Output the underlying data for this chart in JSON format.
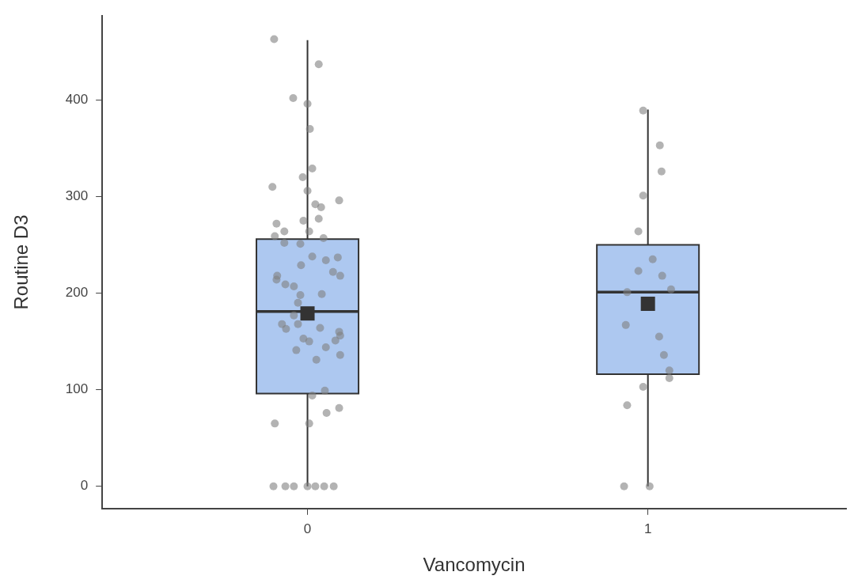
{
  "chart_data": {
    "type": "box",
    "xlabel": "Vancomycin",
    "ylabel": "Routine D3",
    "xlim": [
      -0.603,
      1.582
    ],
    "xticks": [
      0,
      1
    ],
    "ylim": [
      -23,
      487
    ],
    "yticks": [
      0,
      100,
      200,
      300,
      400
    ],
    "grid": false,
    "legend": false,
    "series": [
      {
        "color": "#adc8f0",
        "x": [
          0,
          1
        ],
        "boxes": [
          {
            "low": 0,
            "q1": 96,
            "median": 181,
            "q3": 256,
            "high": 462,
            "mean": 179
          },
          {
            "low": 0,
            "q1": 116,
            "median": 201,
            "q3": 250,
            "high": 390,
            "mean": 189
          }
        ]
      },
      {
        "type": "scatter",
        "color": "#808080",
        "marker": "circle",
        "x": [
          -0.098,
          0.033,
          -0.042,
          0,
          0.007,
          0.014,
          -0.014,
          -0.103,
          0,
          0.093,
          0.023,
          0.04,
          0.033,
          -0.012,
          -0.091,
          -0.068,
          0.005,
          -0.096,
          0.047,
          -0.068,
          -0.021,
          0.014,
          0.054,
          0.089,
          -0.019,
          0.075,
          0.096,
          -0.089,
          -0.091,
          -0.065,
          -0.04,
          -0.021,
          0.042,
          -0.028,
          -0.04,
          -0.075,
          -0.063,
          -0.028,
          0.037,
          0.093,
          0.096,
          0.082,
          -0.012,
          0.005,
          -0.033,
          0.054,
          0.096,
          0.026,
          0.051,
          0.014,
          0.093,
          0.056,
          -0.096,
          0.005,
          -0.1,
          -0.065,
          -0.04,
          0,
          0.023,
          0.049,
          0.077,
          0.986,
          1.035,
          1.04,
          0.986,
          0.972,
          1.014,
          0.972,
          1.042,
          1.068,
          0.939,
          0.935,
          1.033,
          1.047,
          1.063,
          1.063,
          0.986,
          0.939,
          0.93,
          1.005
        ],
        "values": [
          463,
          437,
          402,
          396,
          370,
          329,
          320,
          310,
          306,
          296,
          292,
          289,
          277,
          275,
          272,
          264,
          264,
          259,
          257,
          252,
          251,
          238,
          234,
          237,
          229,
          222,
          218,
          218,
          214,
          209,
          207,
          198,
          199,
          190,
          177,
          168,
          163,
          168,
          164,
          160,
          156,
          151,
          153,
          150,
          141,
          144,
          136,
          131,
          99,
          94,
          81,
          76,
          65,
          65,
          0,
          0,
          0,
          0,
          0,
          0,
          0,
          389,
          353,
          326,
          301,
          264,
          235,
          223,
          218,
          204,
          201,
          167,
          155,
          136,
          120,
          112,
          103,
          84,
          0,
          0
        ]
      }
    ]
  }
}
